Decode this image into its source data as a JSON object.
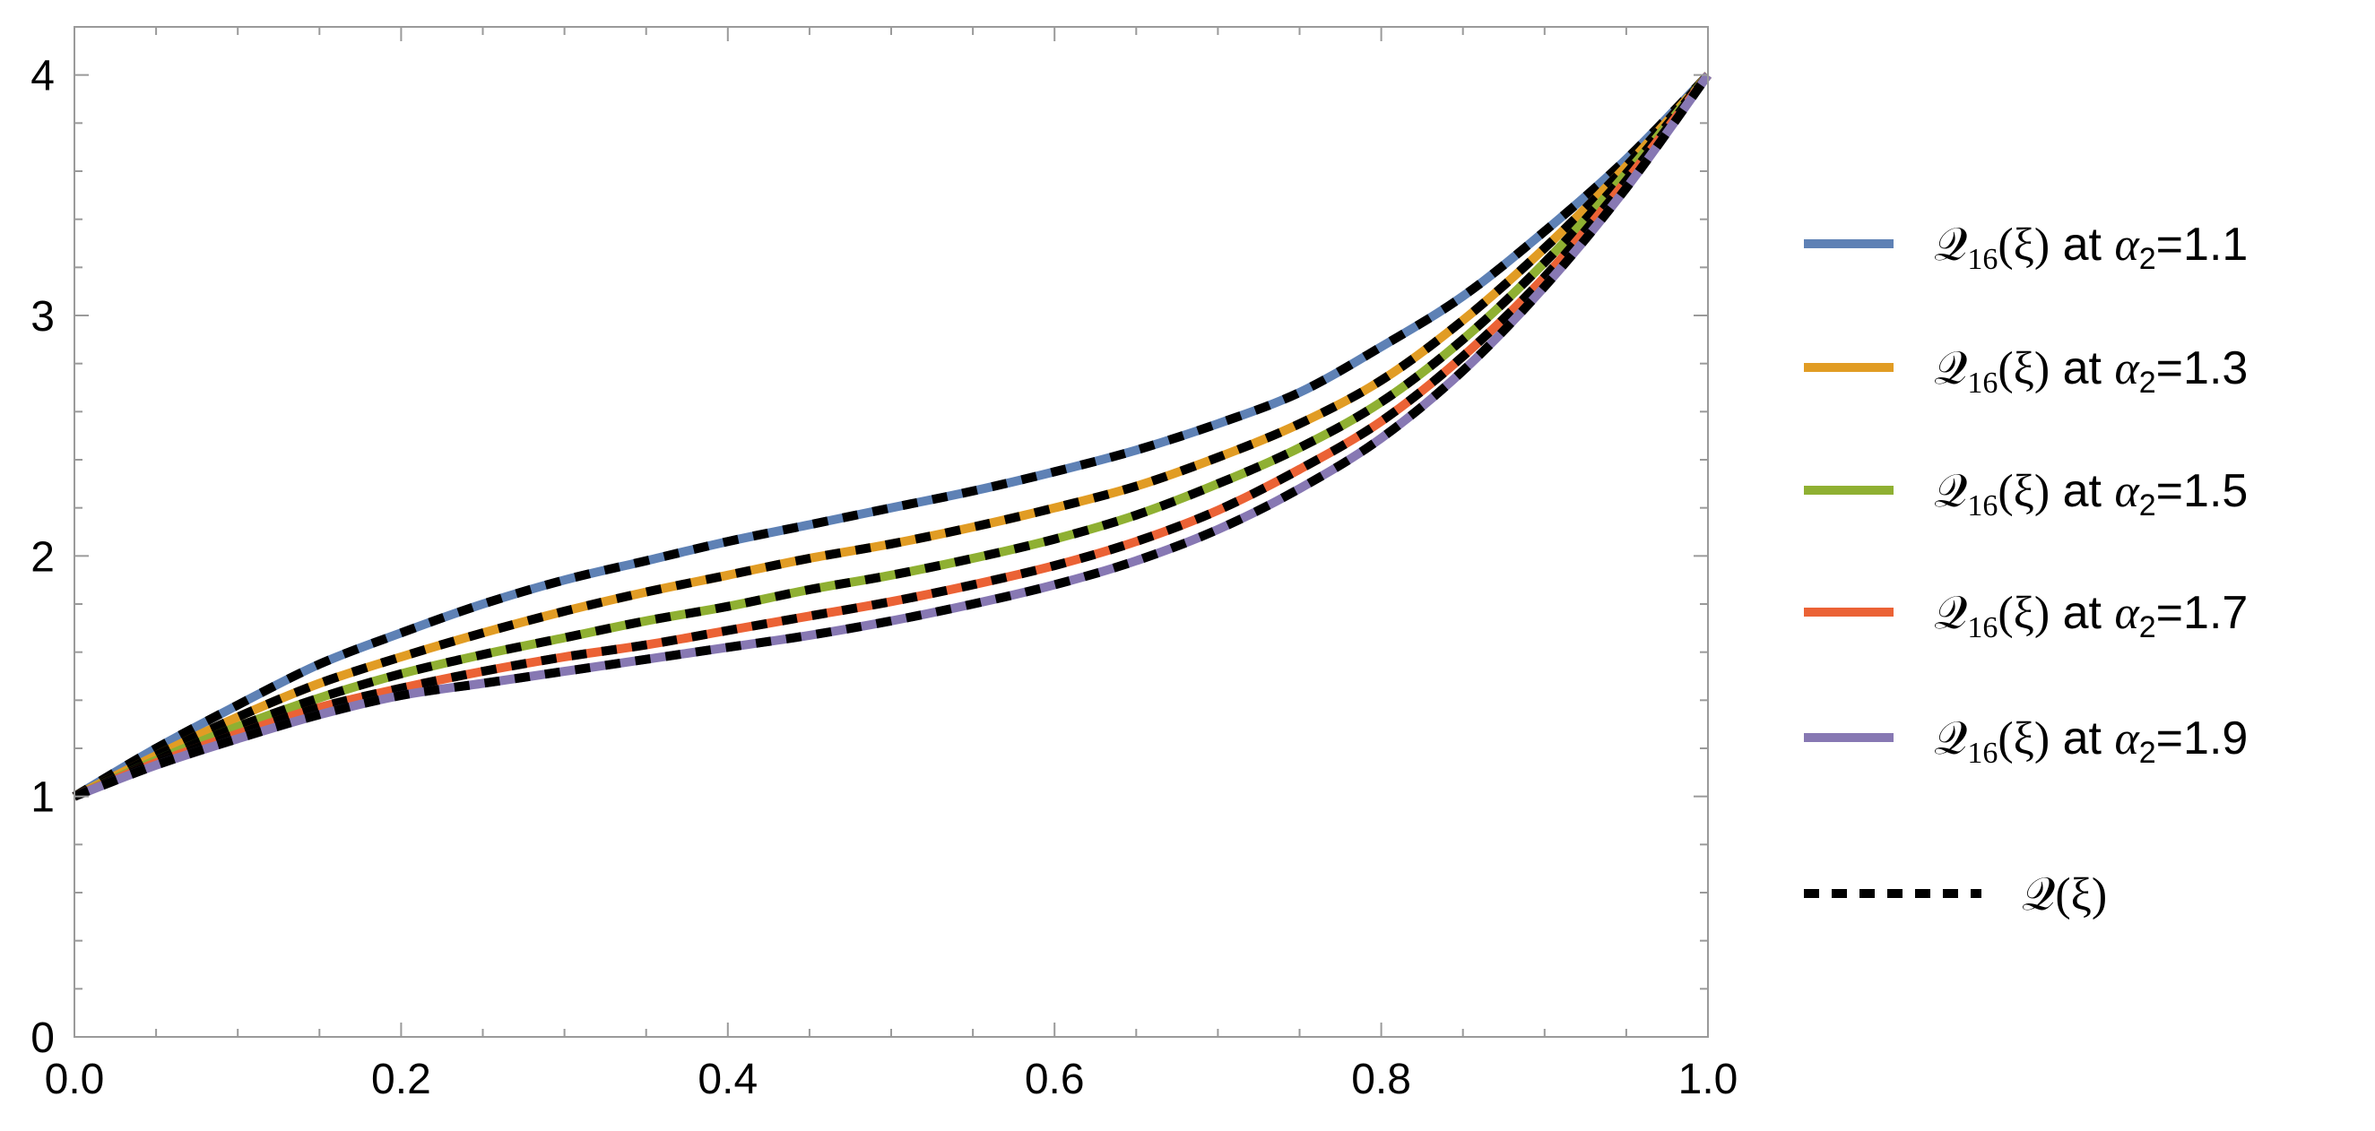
{
  "chart_data": {
    "type": "line",
    "title": "",
    "xlabel": "",
    "ylabel": "",
    "xlim": [
      0,
      1
    ],
    "ylim": [
      0,
      4.2
    ],
    "x_ticks": [
      "0.0",
      "0.2",
      "0.4",
      "0.6",
      "0.8",
      "1.0"
    ],
    "y_ticks": [
      "0",
      "1",
      "2",
      "3",
      "4"
    ],
    "grid": false,
    "legend_position": "right",
    "x": [
      0,
      0.05,
      0.1,
      0.15,
      0.2,
      0.25,
      0.3,
      0.35,
      0.4,
      0.45,
      0.5,
      0.55,
      0.6,
      0.65,
      0.7,
      0.75,
      0.8,
      0.85,
      0.9,
      0.95,
      1.0
    ],
    "series": [
      {
        "name": "𝒬16(ξ) at α2=1.1",
        "label_parts": {
          "func": "𝒬",
          "sub": "16",
          "arg": "(ξ)",
          "at": " at ",
          "alpha": "α",
          "alpha_sub": "2",
          "val": "=1.1"
        },
        "color": "#5e81b5",
        "values": [
          1.0,
          1.2,
          1.38,
          1.55,
          1.68,
          1.8,
          1.9,
          1.98,
          2.06,
          2.13,
          2.2,
          2.27,
          2.35,
          2.44,
          2.55,
          2.68,
          2.87,
          3.08,
          3.35,
          3.65,
          4.0
        ]
      },
      {
        "name": "𝒬16(ξ) at α2=1.3",
        "label_parts": {
          "func": "𝒬",
          "sub": "16",
          "arg": "(ξ)",
          "at": " at ",
          "alpha": "α",
          "alpha_sub": "2",
          "val": "=1.3"
        },
        "color": "#e19c24",
        "values": [
          1.0,
          1.17,
          1.33,
          1.47,
          1.58,
          1.68,
          1.77,
          1.85,
          1.92,
          1.99,
          2.05,
          2.12,
          2.2,
          2.29,
          2.41,
          2.55,
          2.73,
          2.98,
          3.28,
          3.62,
          4.0
        ]
      },
      {
        "name": "𝒬16(ξ) at α2=1.5",
        "label_parts": {
          "func": "𝒬",
          "sub": "16",
          "arg": "(ξ)",
          "at": " at ",
          "alpha": "α",
          "alpha_sub": "2",
          "val": "=1.5"
        },
        "color": "#8fb032",
        "values": [
          1.0,
          1.15,
          1.29,
          1.41,
          1.51,
          1.59,
          1.66,
          1.73,
          1.79,
          1.86,
          1.92,
          1.99,
          2.07,
          2.17,
          2.3,
          2.45,
          2.64,
          2.9,
          3.22,
          3.59,
          4.0
        ]
      },
      {
        "name": "𝒬16(ξ) at α2=1.7",
        "label_parts": {
          "func": "𝒬",
          "sub": "16",
          "arg": "(ξ)",
          "at": " at ",
          "alpha": "α",
          "alpha_sub": "2",
          "val": "=1.7"
        },
        "color": "#eb6235",
        "values": [
          1.0,
          1.14,
          1.26,
          1.37,
          1.45,
          1.52,
          1.58,
          1.63,
          1.69,
          1.75,
          1.81,
          1.88,
          1.96,
          2.06,
          2.19,
          2.36,
          2.56,
          2.83,
          3.16,
          3.56,
          4.0
        ]
      },
      {
        "name": "𝒬16(ξ) at α2=1.9",
        "label_parts": {
          "func": "𝒬",
          "sub": "16",
          "arg": "(ξ)",
          "at": " at ",
          "alpha": "α",
          "alpha_sub": "2",
          "val": "=1.9"
        },
        "color": "#8778b3",
        "values": [
          1.0,
          1.13,
          1.24,
          1.34,
          1.42,
          1.47,
          1.52,
          1.57,
          1.62,
          1.67,
          1.73,
          1.8,
          1.88,
          1.98,
          2.11,
          2.28,
          2.49,
          2.77,
          3.12,
          3.53,
          4.0
        ]
      }
    ],
    "reference": {
      "name": "𝒬(ξ)",
      "label_parts": {
        "func": "𝒬",
        "arg": "(ξ)"
      },
      "color": "#000000",
      "style": "dashed"
    }
  }
}
